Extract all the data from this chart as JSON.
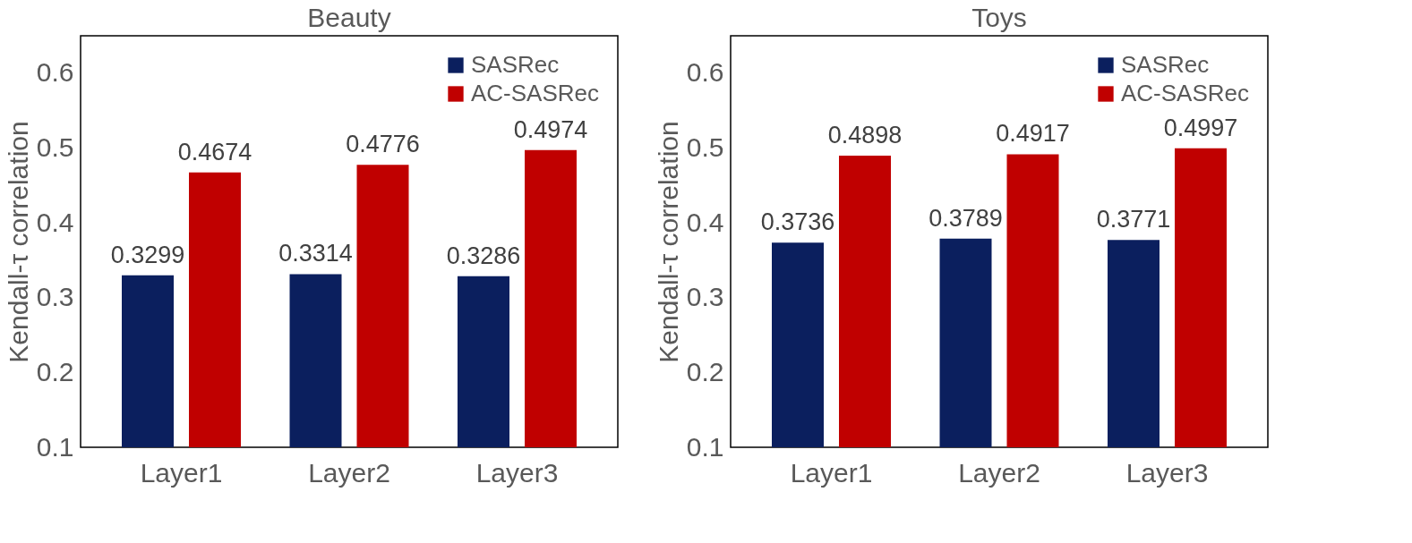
{
  "chart_data": [
    {
      "type": "bar",
      "title": "Beauty",
      "categories": [
        "Layer1",
        "Layer2",
        "Layer3"
      ],
      "ylabel": "Kendall-τ correlation",
      "ylim": [
        0.1,
        0.65
      ],
      "yticks": [
        0.1,
        0.2,
        0.3,
        0.4,
        0.5,
        0.6
      ],
      "grid": false,
      "legend": "top right",
      "data_labels": true,
      "series": [
        {
          "name": "SASRec",
          "color": "#0b1f5e",
          "values": [
            0.3299,
            0.3314,
            0.3286
          ]
        },
        {
          "name": "AC-SASRec",
          "color": "#c00000",
          "values": [
            0.4674,
            0.4776,
            0.4974
          ]
        }
      ]
    },
    {
      "type": "bar",
      "title": "Toys",
      "categories": [
        "Layer1",
        "Layer2",
        "Layer3"
      ],
      "ylabel": "Kendall-τ correlation",
      "ylim": [
        0.1,
        0.65
      ],
      "yticks": [
        0.1,
        0.2,
        0.3,
        0.4,
        0.5,
        0.6
      ],
      "grid": false,
      "legend": "top right",
      "data_labels": true,
      "series": [
        {
          "name": "SASRec",
          "color": "#0b1f5e",
          "values": [
            0.3736,
            0.3789,
            0.3771
          ]
        },
        {
          "name": "AC-SASRec",
          "color": "#c00000",
          "values": [
            0.4898,
            0.4917,
            0.4997
          ]
        }
      ]
    }
  ]
}
